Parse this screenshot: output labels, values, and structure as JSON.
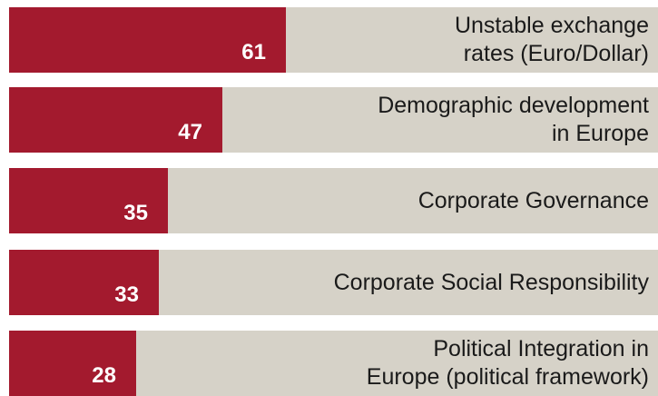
{
  "chart_data": {
    "type": "hbar",
    "categories": [
      "Unstable exchange\nrates (Euro/Dollar)",
      "Demographic development\nin Europe",
      "Corporate Governance",
      "Corporate Social Responsibility",
      "Political Integration in\nEurope (political framework)"
    ],
    "values": [
      61,
      47,
      35,
      33,
      28
    ],
    "color": "#a31a2e"
  }
}
